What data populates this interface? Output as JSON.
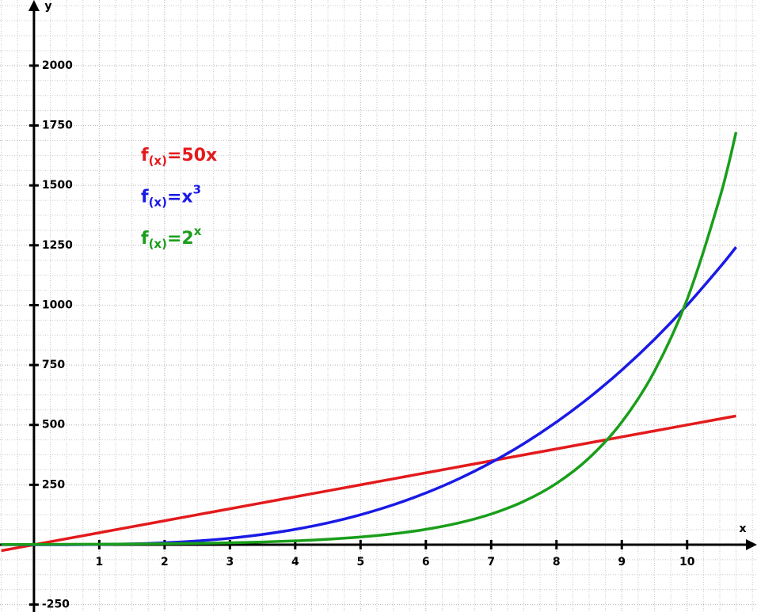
{
  "chart_data": {
    "type": "line",
    "x_label": "x",
    "y_label": "y",
    "x": [
      -0.5,
      0,
      0.5,
      1,
      1.5,
      2,
      2.5,
      3,
      3.5,
      4,
      4.5,
      5,
      5.5,
      6,
      6.5,
      7,
      7.5,
      8,
      8.5,
      9,
      9.5,
      10,
      10.5,
      10.75
    ],
    "series": [
      {
        "name": [
          "f",
          "(x)",
          "=50x"
        ],
        "color": "#e31a1c",
        "values": [
          -25,
          0,
          25,
          50,
          75,
          100,
          125,
          150,
          175,
          200,
          225,
          250,
          275,
          300,
          325,
          350,
          375,
          400,
          425,
          450,
          475,
          500,
          525,
          537.5
        ]
      },
      {
        "name": [
          "f",
          "(x)",
          "=x",
          "3"
        ],
        "color": "#1a1ae6",
        "values": [
          -0.125,
          0,
          0.125,
          1,
          3.375,
          8,
          15.625,
          27,
          42.875,
          64,
          91.125,
          125,
          166.375,
          216,
          274.625,
          343,
          421.875,
          512,
          614.125,
          729,
          857.375,
          1000,
          1157.625,
          1242.297
        ]
      },
      {
        "name": [
          "f",
          "(x)",
          "=2",
          "x"
        ],
        "color": "#1a9e1a",
        "values": [
          0.707,
          1,
          1.414,
          2,
          2.828,
          4,
          5.657,
          8,
          11.314,
          16,
          22.627,
          32,
          45.255,
          64,
          90.51,
          128,
          181.019,
          256,
          362.039,
          512,
          724.077,
          1024,
          1448.155,
          1722.156
        ]
      }
    ],
    "xlim": [
      -0.52,
      11.07
    ],
    "ylim": [
      -281,
      2274
    ],
    "xticks": [
      1,
      2,
      3,
      4,
      5,
      6,
      7,
      8,
      9,
      10
    ],
    "yticks": [
      -250,
      250,
      500,
      750,
      1000,
      1250,
      1500,
      1750,
      2000
    ],
    "grid": true
  }
}
